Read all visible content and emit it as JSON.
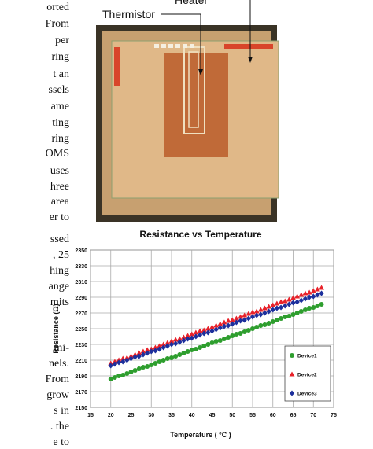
{
  "text_fragments": [
    "orted",
    "From",
    "per",
    "ring",
    "t an",
    "ssels",
    "ame",
    "ting",
    "ring",
    "OMS",
    "uses",
    "hree",
    "area",
    "er to",
    "ssed",
    ", 25",
    "hing",
    "ange",
    "mits",
    "mi-",
    "nels.",
    "From",
    "grow",
    "s in",
    ". the",
    "e to"
  ],
  "figure": {
    "labels": [
      "Thermistor",
      "Heater"
    ]
  },
  "chart_data": {
    "type": "scatter",
    "title": "Resistance vs Temperature",
    "x_label": "Temperature ( °C )",
    "y_label": "Resistance (Ω)",
    "x": [
      20,
      21,
      22,
      23,
      24,
      25,
      26,
      27,
      28,
      29,
      30,
      31,
      32,
      33,
      34,
      35,
      36,
      37,
      38,
      39,
      40,
      41,
      42,
      43,
      44,
      45,
      46,
      47,
      48,
      49,
      50,
      51,
      52,
      53,
      54,
      55,
      56,
      57,
      58,
      59,
      60,
      61,
      62,
      63,
      64,
      65,
      66,
      67,
      68,
      69,
      70,
      71,
      72
    ],
    "series": [
      {
        "name": "Device1",
        "color": "#2e9e2e",
        "marker": "circle",
        "values": [
          2186,
          2188,
          2190,
          2191,
          2193,
          2195,
          2197,
          2199,
          2201,
          2202,
          2204,
          2206,
          2208,
          2210,
          2212,
          2213,
          2215,
          2217,
          2219,
          2221,
          2223,
          2224,
          2226,
          2228,
          2230,
          2232,
          2234,
          2235,
          2237,
          2239,
          2241,
          2243,
          2244,
          2246,
          2248,
          2250,
          2252,
          2254,
          2255,
          2257,
          2259,
          2261,
          2263,
          2265,
          2266,
          2268,
          2270,
          2272,
          2274,
          2276,
          2277,
          2279,
          2281
        ]
      },
      {
        "name": "Device2",
        "color": "#e8222a",
        "marker": "triangle",
        "values": [
          2206,
          2208,
          2210,
          2212,
          2213,
          2215,
          2217,
          2219,
          2221,
          2223,
          2224,
          2226,
          2228,
          2230,
          2232,
          2234,
          2236,
          2237,
          2239,
          2241,
          2243,
          2245,
          2247,
          2248,
          2250,
          2252,
          2254,
          2256,
          2258,
          2260,
          2261,
          2263,
          2265,
          2267,
          2269,
          2271,
          2272,
          2274,
          2276,
          2278,
          2280,
          2282,
          2284,
          2285,
          2287,
          2289,
          2291,
          2293,
          2295,
          2296,
          2298,
          2300,
          2302
        ]
      },
      {
        "name": "Device3",
        "color": "#1c2f9c",
        "marker": "diamond",
        "values": [
          2203,
          2205,
          2207,
          2208,
          2210,
          2212,
          2214,
          2215,
          2217,
          2219,
          2221,
          2222,
          2224,
          2226,
          2228,
          2230,
          2231,
          2233,
          2235,
          2237,
          2238,
          2240,
          2242,
          2244,
          2245,
          2247,
          2249,
          2251,
          2253,
          2254,
          2256,
          2258,
          2260,
          2261,
          2263,
          2265,
          2267,
          2268,
          2270,
          2272,
          2274,
          2276,
          2277,
          2279,
          2281,
          2283,
          2284,
          2286,
          2288,
          2290,
          2291,
          2293,
          2295
        ]
      }
    ],
    "xlim": [
      15,
      75
    ],
    "xticks": [
      15,
      20,
      25,
      30,
      35,
      40,
      45,
      50,
      55,
      60,
      65,
      70,
      75
    ],
    "ylim": [
      2150,
      2350
    ],
    "yticks": [
      2150,
      2170,
      2190,
      2210,
      2230,
      2250,
      2270,
      2290,
      2310,
      2330,
      2350
    ],
    "grid": true,
    "legend": "lower right"
  }
}
